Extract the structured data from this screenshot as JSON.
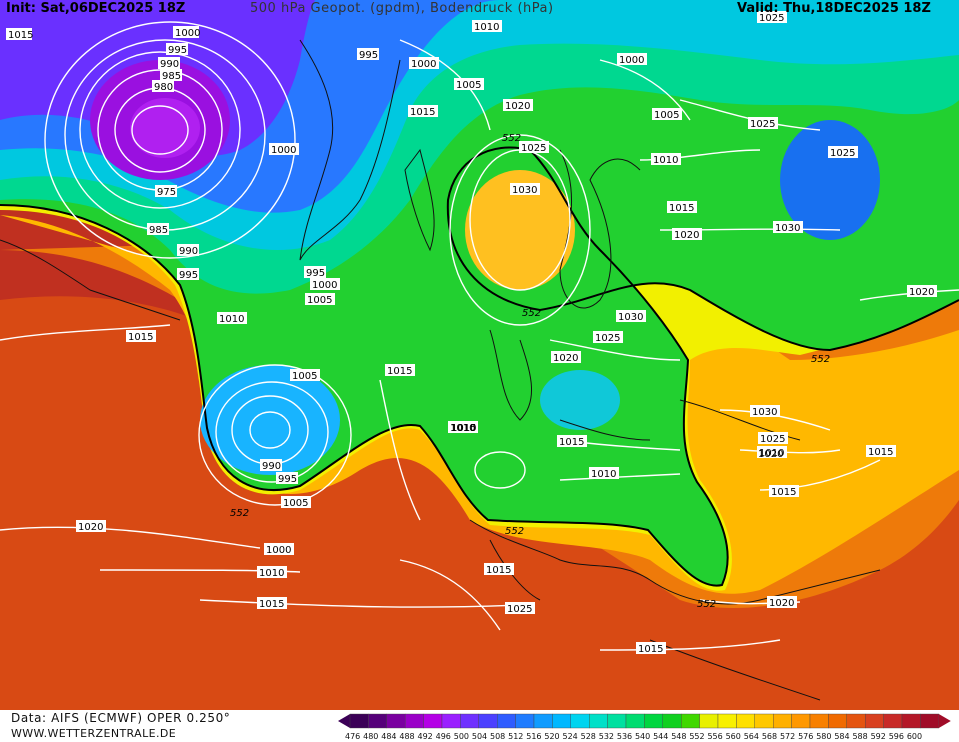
{
  "header": {
    "init": "Init: Sat,06DEC2025 18Z",
    "title": "500 hPa Geopot. (gpdm), Bodendruck (hPa)",
    "valid": "Valid: Thu,18DEC2025 18Z"
  },
  "footer": {
    "data_source": "Data: AIFS (ECMWF) OPER 0.250°",
    "website": "WWW.WETTERZENTRALE.DE"
  },
  "colorbar": {
    "ticks": [
      "476",
      "480",
      "484",
      "488",
      "492",
      "496",
      "500",
      "504",
      "508",
      "512",
      "516",
      "520",
      "524",
      "528",
      "532",
      "536",
      "540",
      "544",
      "548",
      "552",
      "556",
      "560",
      "564",
      "568",
      "572",
      "576",
      "580",
      "584",
      "588",
      "592",
      "596",
      "600"
    ],
    "colors": [
      "#3b0057",
      "#55007a",
      "#7a00a0",
      "#9a00c8",
      "#b400e6",
      "#9a20ff",
      "#6f30ff",
      "#4b40ff",
      "#2f5cff",
      "#1f7cff",
      "#109cff",
      "#00b8ff",
      "#00d4f0",
      "#00e0c8",
      "#00e0a0",
      "#00dc70",
      "#00d640",
      "#10d020",
      "#40d800",
      "#e8f000",
      "#f8f000",
      "#ffe000",
      "#ffc800",
      "#ffb000",
      "#ff9800",
      "#f88000",
      "#f06a00",
      "#e45410",
      "#d84020",
      "#c82a28",
      "#b41828",
      "#a00c28"
    ]
  },
  "map": {
    "special_isoline_label": "552",
    "pressure_labels": [
      "1015",
      "1000",
      "995",
      "990",
      "985",
      "980",
      "975",
      "985",
      "990",
      "995",
      "1000",
      "995",
      "1000",
      "1005",
      "995",
      "1000",
      "1005",
      "1010",
      "1015",
      "1010",
      "1005",
      "1015",
      "1020",
      "1025",
      "1030",
      "1000",
      "1005",
      "1010",
      "1015",
      "1020",
      "1025",
      "1030",
      "1025",
      "1020",
      "1030",
      "1025",
      "1020",
      "1015",
      "1010",
      "1015",
      "1025",
      "1015",
      "1010",
      "1005",
      "990",
      "995",
      "1000",
      "1010",
      "1015",
      "1020",
      "1025",
      "1015",
      "1020",
      "1015",
      "1010",
      "1030",
      "1025",
      "1020",
      "1015",
      "1015",
      "1010"
    ]
  }
}
